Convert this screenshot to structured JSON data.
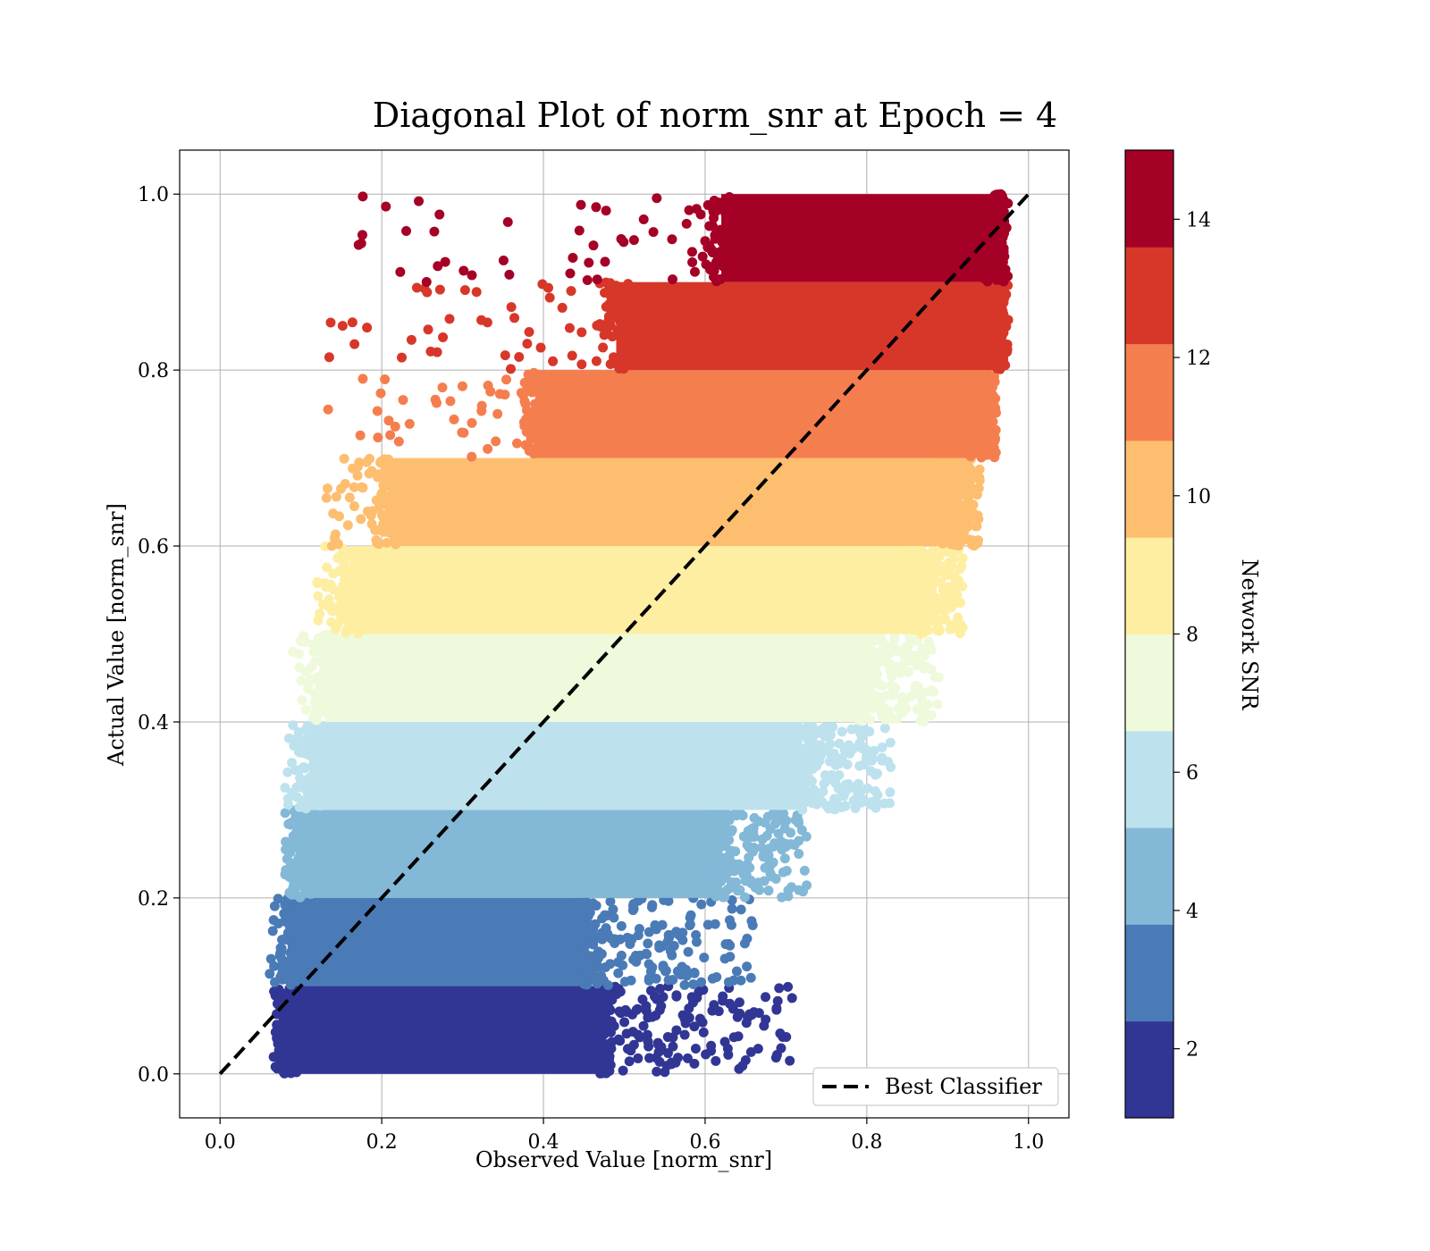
{
  "chart_data": {
    "type": "scatter",
    "title": "Diagonal Plot of norm_snr at Epoch = 4",
    "xlabel": "Observed Value [norm_snr]",
    "ylabel": "Actual Value [norm_snr]",
    "xlim": [
      -0.05,
      1.05
    ],
    "ylim": [
      -0.05,
      1.05
    ],
    "x_ticks": [
      "0.0",
      "0.2",
      "0.4",
      "0.6",
      "0.8",
      "1.0"
    ],
    "y_ticks": [
      "0.0",
      "0.2",
      "0.4",
      "0.6",
      "0.8",
      "1.0"
    ],
    "grid": true,
    "legend": {
      "position": "lower right",
      "entries": [
        {
          "label": "Best Classifier",
          "style": "dashed",
          "color": "#000000"
        }
      ]
    },
    "reference_line": {
      "label": "Best Classifier",
      "x": [
        0.0,
        1.0
      ],
      "y": [
        0.0,
        1.0
      ]
    },
    "colorbar": {
      "label": "Network SNR",
      "range": [
        1,
        15
      ],
      "ticks": [
        "2",
        "4",
        "6",
        "8",
        "10",
        "12",
        "14"
      ],
      "colors": [
        "#313695",
        "#4a7bb7",
        "#83b8d7",
        "#bde2ee",
        "#eff9db",
        "#feeea2",
        "#fdbe70",
        "#f57e4e",
        "#d73729",
        "#a50026"
      ]
    },
    "bands": [
      {
        "snr": [
          1.0,
          2.4
        ],
        "y": [
          0.0,
          0.1
        ],
        "x_core": [
          0.08,
          0.47
        ],
        "x_spread": [
          0.07,
          0.71
        ],
        "color": "#313695"
      },
      {
        "snr": [
          2.4,
          3.8
        ],
        "y": [
          0.1,
          0.2
        ],
        "x_core": [
          0.09,
          0.45
        ],
        "x_spread": [
          0.06,
          0.66
        ],
        "color": "#4a7bb7"
      },
      {
        "snr": [
          3.8,
          5.2
        ],
        "y": [
          0.2,
          0.3
        ],
        "x_core": [
          0.1,
          0.61
        ],
        "x_spread": [
          0.08,
          0.73
        ],
        "color": "#83b8d7"
      },
      {
        "snr": [
          5.2,
          6.6
        ],
        "y": [
          0.3,
          0.4
        ],
        "x_core": [
          0.11,
          0.72
        ],
        "x_spread": [
          0.08,
          0.83
        ],
        "color": "#bde2ee"
      },
      {
        "snr": [
          6.6,
          8.0
        ],
        "y": [
          0.4,
          0.5
        ],
        "x_core": [
          0.13,
          0.79
        ],
        "x_spread": [
          0.09,
          0.89
        ],
        "color": "#eff9db"
      },
      {
        "snr": [
          8.0,
          9.4
        ],
        "y": [
          0.5,
          0.6
        ],
        "x_core": [
          0.16,
          0.86
        ],
        "x_spread": [
          0.12,
          0.92
        ],
        "color": "#feeea2"
      },
      {
        "snr": [
          9.4,
          10.8
        ],
        "y": [
          0.6,
          0.7
        ],
        "x_core": [
          0.21,
          0.9
        ],
        "x_spread": [
          0.13,
          0.94
        ],
        "color": "#fdbe70"
      },
      {
        "snr": [
          10.8,
          12.2
        ],
        "y": [
          0.7,
          0.8
        ],
        "x_core": [
          0.39,
          0.94
        ],
        "x_spread": [
          0.13,
          0.96
        ],
        "color": "#f57e4e"
      },
      {
        "snr": [
          12.2,
          13.6
        ],
        "y": [
          0.8,
          0.9
        ],
        "x_core": [
          0.49,
          0.96
        ],
        "x_spread": [
          0.13,
          0.97
        ],
        "color": "#d73729"
      },
      {
        "snr": [
          13.6,
          15.0
        ],
        "y": [
          0.9,
          1.0
        ],
        "x_core": [
          0.62,
          0.96
        ],
        "x_spread": [
          0.16,
          0.97
        ],
        "color": "#a50026"
      }
    ]
  }
}
